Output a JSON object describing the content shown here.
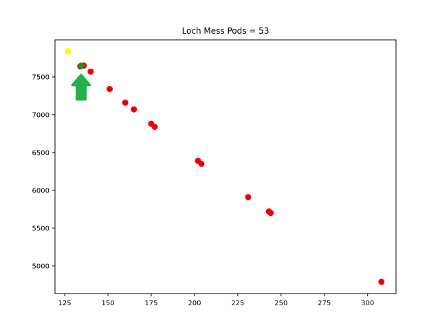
{
  "chart_data": {
    "type": "scatter",
    "title": "Loch Mess Pods = 53",
    "xlabel": "",
    "ylabel": "",
    "xlim": [
      119.4,
      316.4
    ],
    "ylim": [
      4635,
      7990
    ],
    "x_ticks": [
      125,
      150,
      175,
      200,
      225,
      250,
      275,
      300
    ],
    "y_ticks": [
      5000,
      5500,
      6000,
      6500,
      7000,
      7500
    ],
    "grid": false,
    "series": [
      {
        "color": "#ee0000",
        "points": [
          {
            "x": 134,
            "y": 7640
          },
          {
            "x": 136,
            "y": 7650
          },
          {
            "x": 140,
            "y": 7570
          },
          {
            "x": 151,
            "y": 7340
          },
          {
            "x": 160,
            "y": 7160
          },
          {
            "x": 165,
            "y": 7070
          },
          {
            "x": 175,
            "y": 6880
          },
          {
            "x": 177,
            "y": 6840
          },
          {
            "x": 202,
            "y": 6390
          },
          {
            "x": 204,
            "y": 6350
          },
          {
            "x": 231,
            "y": 5910
          },
          {
            "x": 243,
            "y": 5720
          },
          {
            "x": 244,
            "y": 5700
          },
          {
            "x": 308,
            "y": 4790
          }
        ]
      },
      {
        "color": "#ffff00",
        "points": [
          {
            "x": 127,
            "y": 7840
          }
        ]
      },
      {
        "color": "#228b22",
        "points": [
          {
            "x": 134.5,
            "y": 7650
          }
        ]
      }
    ],
    "annotations": [
      {
        "type": "arrow",
        "direction": "up",
        "color": "#22b14c",
        "x": 134.5,
        "y_from": 7200,
        "y_to": 7530
      }
    ]
  }
}
